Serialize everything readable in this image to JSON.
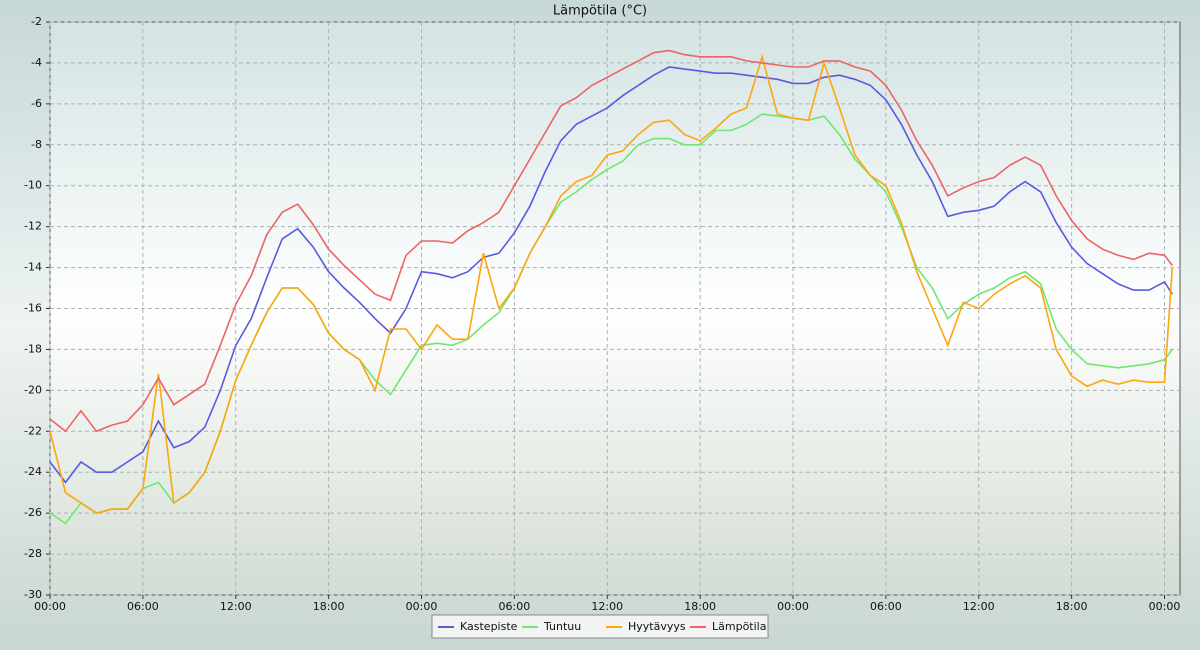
{
  "chart_data": {
    "type": "line",
    "title": "Lämpötila (°C)",
    "x": [
      0,
      1,
      2,
      3,
      4,
      5,
      6,
      7,
      8,
      9,
      10,
      11,
      12,
      13,
      14,
      15,
      16,
      17,
      18,
      19,
      20,
      21,
      22,
      23,
      24,
      25,
      26,
      27,
      28,
      29,
      30,
      31,
      32,
      33,
      34,
      35,
      36,
      37,
      38,
      39,
      40,
      41,
      42,
      43,
      44,
      45,
      46,
      47,
      48,
      49,
      50,
      51,
      52,
      53,
      54,
      55,
      56,
      57,
      58,
      59,
      60,
      61,
      62,
      63,
      64,
      65,
      66,
      67,
      68,
      69,
      70,
      71,
      72,
      72.5
    ],
    "series": [
      {
        "name": "Kastepiste",
        "color": "#5a5ae0",
        "values": [
          -23.5,
          -24.5,
          -23.5,
          -24,
          -24,
          -23.5,
          -23,
          -21.5,
          -22.8,
          -22.5,
          -21.8,
          -20,
          -17.8,
          -16.5,
          -14.5,
          -12.6,
          -12.1,
          -13,
          -14.2,
          -15,
          -15.7,
          -16.5,
          -17.2,
          -16,
          -14.2,
          -14.3,
          -14.5,
          -14.2,
          -13.5,
          -13.3,
          -12.3,
          -11,
          -9.3,
          -7.8,
          -7,
          -6.6,
          -6.2,
          -5.6,
          -5.1,
          -4.6,
          -4.2,
          -4.3,
          -4.4,
          -4.5,
          -4.5,
          -4.6,
          -4.7,
          -4.8,
          -5,
          -5,
          -4.7,
          -4.6,
          -4.8,
          -5.1,
          -5.8,
          -7,
          -8.5,
          -9.8,
          -11.5,
          -11.3,
          -11.2,
          -11,
          -10.3,
          -9.8,
          -10.3,
          -11.8,
          -13,
          -13.8,
          -14.3,
          -14.8,
          -15.1,
          -15.1,
          -14.7,
          -15.3
        ]
      },
      {
        "name": "Tuntuu",
        "color": "#6ee86e",
        "values": [
          -26,
          -26.5,
          -25.5,
          -26,
          -25.8,
          -25.8,
          -24.8,
          -24.5,
          -25.5,
          -25,
          -24,
          -22,
          -19.5,
          -17.8,
          -16.2,
          -15,
          -15,
          -15.8,
          -17.2,
          -18,
          -18.5,
          -19.5,
          -20.2,
          -19,
          -17.8,
          -17.7,
          -17.8,
          -17.5,
          -16.8,
          -16.2,
          -15,
          -13.3,
          -12,
          -10.8,
          -10.3,
          -9.7,
          -9.2,
          -8.8,
          -8,
          -7.7,
          -7.7,
          -8,
          -8,
          -7.3,
          -7.3,
          -7,
          -6.5,
          -6.6,
          -6.7,
          -6.8,
          -6.6,
          -7.5,
          -8.7,
          -9.5,
          -10.3,
          -12,
          -14,
          -15,
          -16.5,
          -15.8,
          -15.3,
          -15,
          -14.5,
          -14.2,
          -14.8,
          -17,
          -18,
          -18.7,
          -18.8,
          -18.9,
          -18.8,
          -18.7,
          -18.5,
          -18
        ]
      },
      {
        "name": "Hyytävyys",
        "color": "#ffa510",
        "values": [
          -22,
          -25,
          -25.5,
          -26,
          -25.8,
          -25.8,
          -24.8,
          -19.2,
          -25.5,
          -25,
          -24,
          -22,
          -19.5,
          -17.8,
          -16.2,
          -15,
          -15,
          -15.8,
          -17.2,
          -18,
          -18.5,
          -20,
          -17,
          -17,
          -18,
          -16.8,
          -17.5,
          -17.5,
          -13.3,
          -16,
          -15,
          -13.3,
          -12,
          -10.5,
          -9.8,
          -9.5,
          -8.5,
          -8.3,
          -7.5,
          -6.9,
          -6.8,
          -7.5,
          -7.8,
          -7.2,
          -6.5,
          -6.2,
          -3.7,
          -6.5,
          -6.7,
          -6.8,
          -4,
          -6.2,
          -8.5,
          -9.5,
          -10,
          -11.8,
          -14.2,
          -16,
          -17.8,
          -15.7,
          -16,
          -15.3,
          -14.8,
          -14.4,
          -15,
          -18,
          -19.3,
          -19.8,
          -19.5,
          -19.7,
          -19.5,
          -19.6,
          -19.6,
          -14
        ]
      },
      {
        "name": "Lämpötila",
        "color": "#ec6464",
        "values": [
          -21.4,
          -22,
          -21,
          -22,
          -21.7,
          -21.5,
          -20.7,
          -19.4,
          -20.7,
          -20.2,
          -19.7,
          -17.8,
          -15.8,
          -14.4,
          -12.4,
          -11.3,
          -10.9,
          -11.9,
          -13.1,
          -13.9,
          -14.6,
          -15.3,
          -15.6,
          -13.4,
          -12.7,
          -12.7,
          -12.8,
          -12.2,
          -11.8,
          -11.3,
          -10,
          -8.7,
          -7.4,
          -6.1,
          -5.7,
          -5.1,
          -4.7,
          -4.3,
          -3.9,
          -3.5,
          -3.4,
          -3.6,
          -3.7,
          -3.7,
          -3.7,
          -3.9,
          -4,
          -4.1,
          -4.2,
          -4.2,
          -3.9,
          -3.9,
          -4.2,
          -4.4,
          -5.1,
          -6.3,
          -7.8,
          -9,
          -10.5,
          -10.1,
          -9.8,
          -9.6,
          -9,
          -8.6,
          -9,
          -10.5,
          -11.7,
          -12.6,
          -13.1,
          -13.4,
          -13.6,
          -13.3,
          -13.4,
          -13.9
        ]
      }
    ],
    "xlim": [
      0,
      73
    ],
    "xticks": [
      {
        "value": 0,
        "label": "00:00"
      },
      {
        "value": 6,
        "label": "06:00"
      },
      {
        "value": 12,
        "label": "12:00"
      },
      {
        "value": 18,
        "label": "18:00"
      },
      {
        "value": 24,
        "label": "00:00"
      },
      {
        "value": 30,
        "label": "06:00"
      },
      {
        "value": 36,
        "label": "12:00"
      },
      {
        "value": 42,
        "label": "18:00"
      },
      {
        "value": 48,
        "label": "00:00"
      },
      {
        "value": 54,
        "label": "06:00"
      },
      {
        "value": 60,
        "label": "12:00"
      },
      {
        "value": 66,
        "label": "18:00"
      },
      {
        "value": 72,
        "label": "00:00"
      }
    ],
    "ylim": [
      -30,
      -2
    ],
    "yticks": [
      -30,
      -28,
      -26,
      -24,
      -22,
      -20,
      -18,
      -16,
      -14,
      -12,
      -10,
      -8,
      -6,
      -4,
      -2
    ],
    "grid": true,
    "legend": "bottom"
  }
}
